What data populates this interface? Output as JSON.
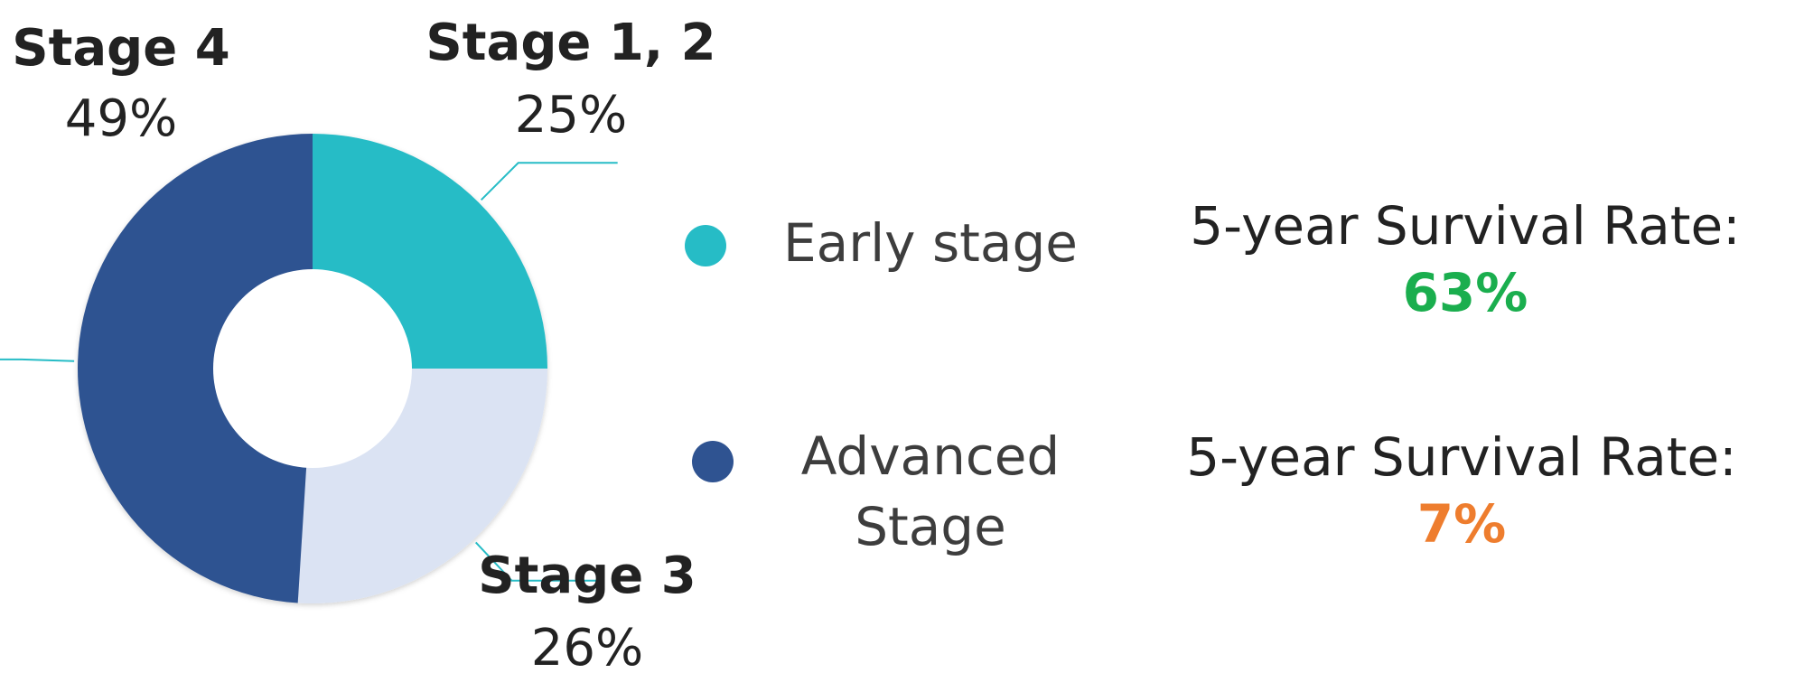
{
  "chart_data": {
    "type": "pie",
    "variant": "donut",
    "slices": [
      {
        "label": "Stage 1, 2",
        "value_label": "25%",
        "value": 25,
        "color": "#26bcc6"
      },
      {
        "label": "Stage 3",
        "value_label": "26%",
        "value": 26,
        "color": "#dbe3f3"
      },
      {
        "label": "Stage 4",
        "value_label": "49%",
        "value": 49,
        "color": "#2f5391"
      }
    ],
    "leader_line_color": "#26bcc6"
  },
  "legend": [
    {
      "label": "Early stage",
      "color": "#26bcc6",
      "rate_label": "5-year Survival Rate:",
      "rate_value": "63%",
      "rate_color": "#1aae4e"
    },
    {
      "label": "Advanced\nStage",
      "color": "#2f5391",
      "rate_label": "5-year Survival Rate:",
      "rate_value": "7%",
      "rate_color": "#ee7d2e"
    }
  ]
}
